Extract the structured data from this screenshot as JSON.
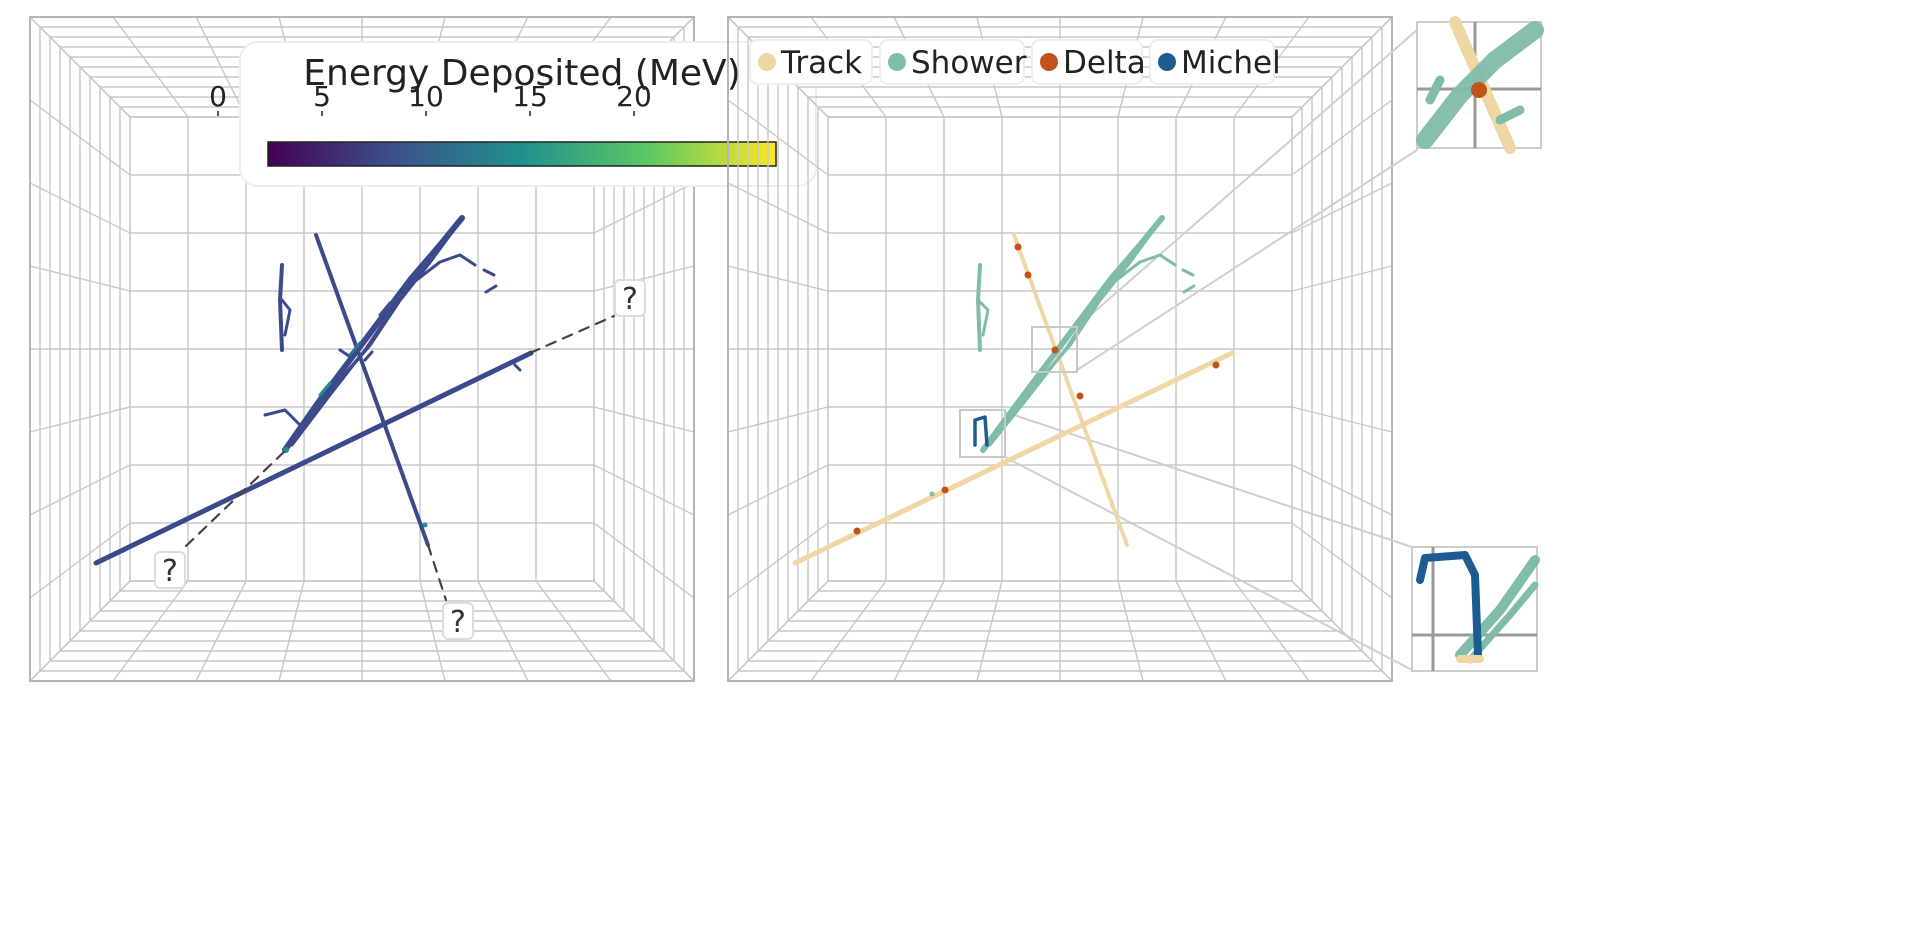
{
  "left_panel": {
    "colorbar": {
      "title": "Energy Deposited (MeV)",
      "ticks": [
        "0",
        "5",
        "10",
        "15",
        "20"
      ],
      "range": [
        0,
        20
      ],
      "colormap": [
        "#440154",
        "#3b528b",
        "#21908d",
        "#5dc863",
        "#fde725"
      ]
    },
    "unknown_marker": "?",
    "track_color": "#3b4a8a"
  },
  "right_panel": {
    "legend": [
      {
        "label": "Track",
        "color": "#f0d6a4"
      },
      {
        "label": "Shower",
        "color": "#7fbca9"
      },
      {
        "label": "Delta",
        "color": "#c0531a"
      },
      {
        "label": "Michel",
        "color": "#1d5c91"
      }
    ]
  },
  "colors": {
    "grid": "#c8c8c8",
    "frame": "#b5b5b5",
    "leader": "#cfcfcf"
  }
}
